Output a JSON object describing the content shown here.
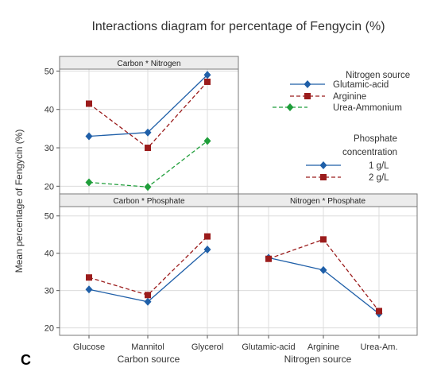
{
  "title": "Interactions diagram for percentage of Fengycin (%)",
  "panel_letter": "C",
  "ylabel": "Mean percentage of Fengycin (%)",
  "xlabel_carbon": "Carbon source",
  "xlabel_nitrogen": "Nitrogen source",
  "colors": {
    "blue": "#1f5fa8",
    "red": "#9b1c1c",
    "green": "#1f9e3a"
  },
  "legend_nitrogen": {
    "title": "Nitrogen source",
    "items": [
      "Glutamic-acid",
      "Arginine",
      "Urea-Ammonium"
    ]
  },
  "legend_phosphate": {
    "title_line1": "Phosphate",
    "title_line2": "concentration",
    "items": [
      "1 g/L",
      "2 g/L"
    ]
  },
  "chart_data": [
    {
      "type": "line",
      "panel": "Carbon * Nitrogen",
      "categories": [
        "Glucose",
        "Mannitol",
        "Glycerol"
      ],
      "ylim": [
        18,
        50.5
      ],
      "yticks": [
        20,
        30,
        40,
        50
      ],
      "series": [
        {
          "name": "Glutamic-acid",
          "values": [
            33,
            34,
            49
          ],
          "color": "blue",
          "marker": "diamond",
          "dash": "solid"
        },
        {
          "name": "Arginine",
          "values": [
            41.5,
            30,
            47.2
          ],
          "color": "red",
          "marker": "square",
          "dash": "dashed"
        },
        {
          "name": "Urea-Ammonium",
          "values": [
            21,
            19.8,
            31.8
          ],
          "color": "green",
          "marker": "diamond",
          "dash": "dashed"
        }
      ]
    },
    {
      "type": "line",
      "panel": "Carbon * Phosphate",
      "categories": [
        "Glucose",
        "Mannitol",
        "Glycerol"
      ],
      "ylim": [
        18,
        52.5
      ],
      "yticks": [
        20,
        30,
        40,
        50
      ],
      "series": [
        {
          "name": "1 g/L",
          "values": [
            30.3,
            27,
            41
          ],
          "color": "blue",
          "marker": "diamond",
          "dash": "solid"
        },
        {
          "name": "2 g/L",
          "values": [
            33.5,
            28.8,
            44.5
          ],
          "color": "red",
          "marker": "square",
          "dash": "dashed"
        }
      ]
    },
    {
      "type": "line",
      "panel": "Nitrogen * Phosphate",
      "categories": [
        "Glutamic-acid",
        "Arginine",
        "Urea-Am."
      ],
      "ylim": [
        18,
        52.5
      ],
      "yticks": [
        20,
        30,
        40,
        50
      ],
      "series": [
        {
          "name": "1 g/L",
          "values": [
            38.8,
            35.5,
            23.8
          ],
          "color": "blue",
          "marker": "diamond",
          "dash": "solid"
        },
        {
          "name": "2 g/L",
          "values": [
            38.5,
            43.7,
            24.5
          ],
          "color": "red",
          "marker": "square",
          "dash": "dashed"
        }
      ]
    }
  ]
}
